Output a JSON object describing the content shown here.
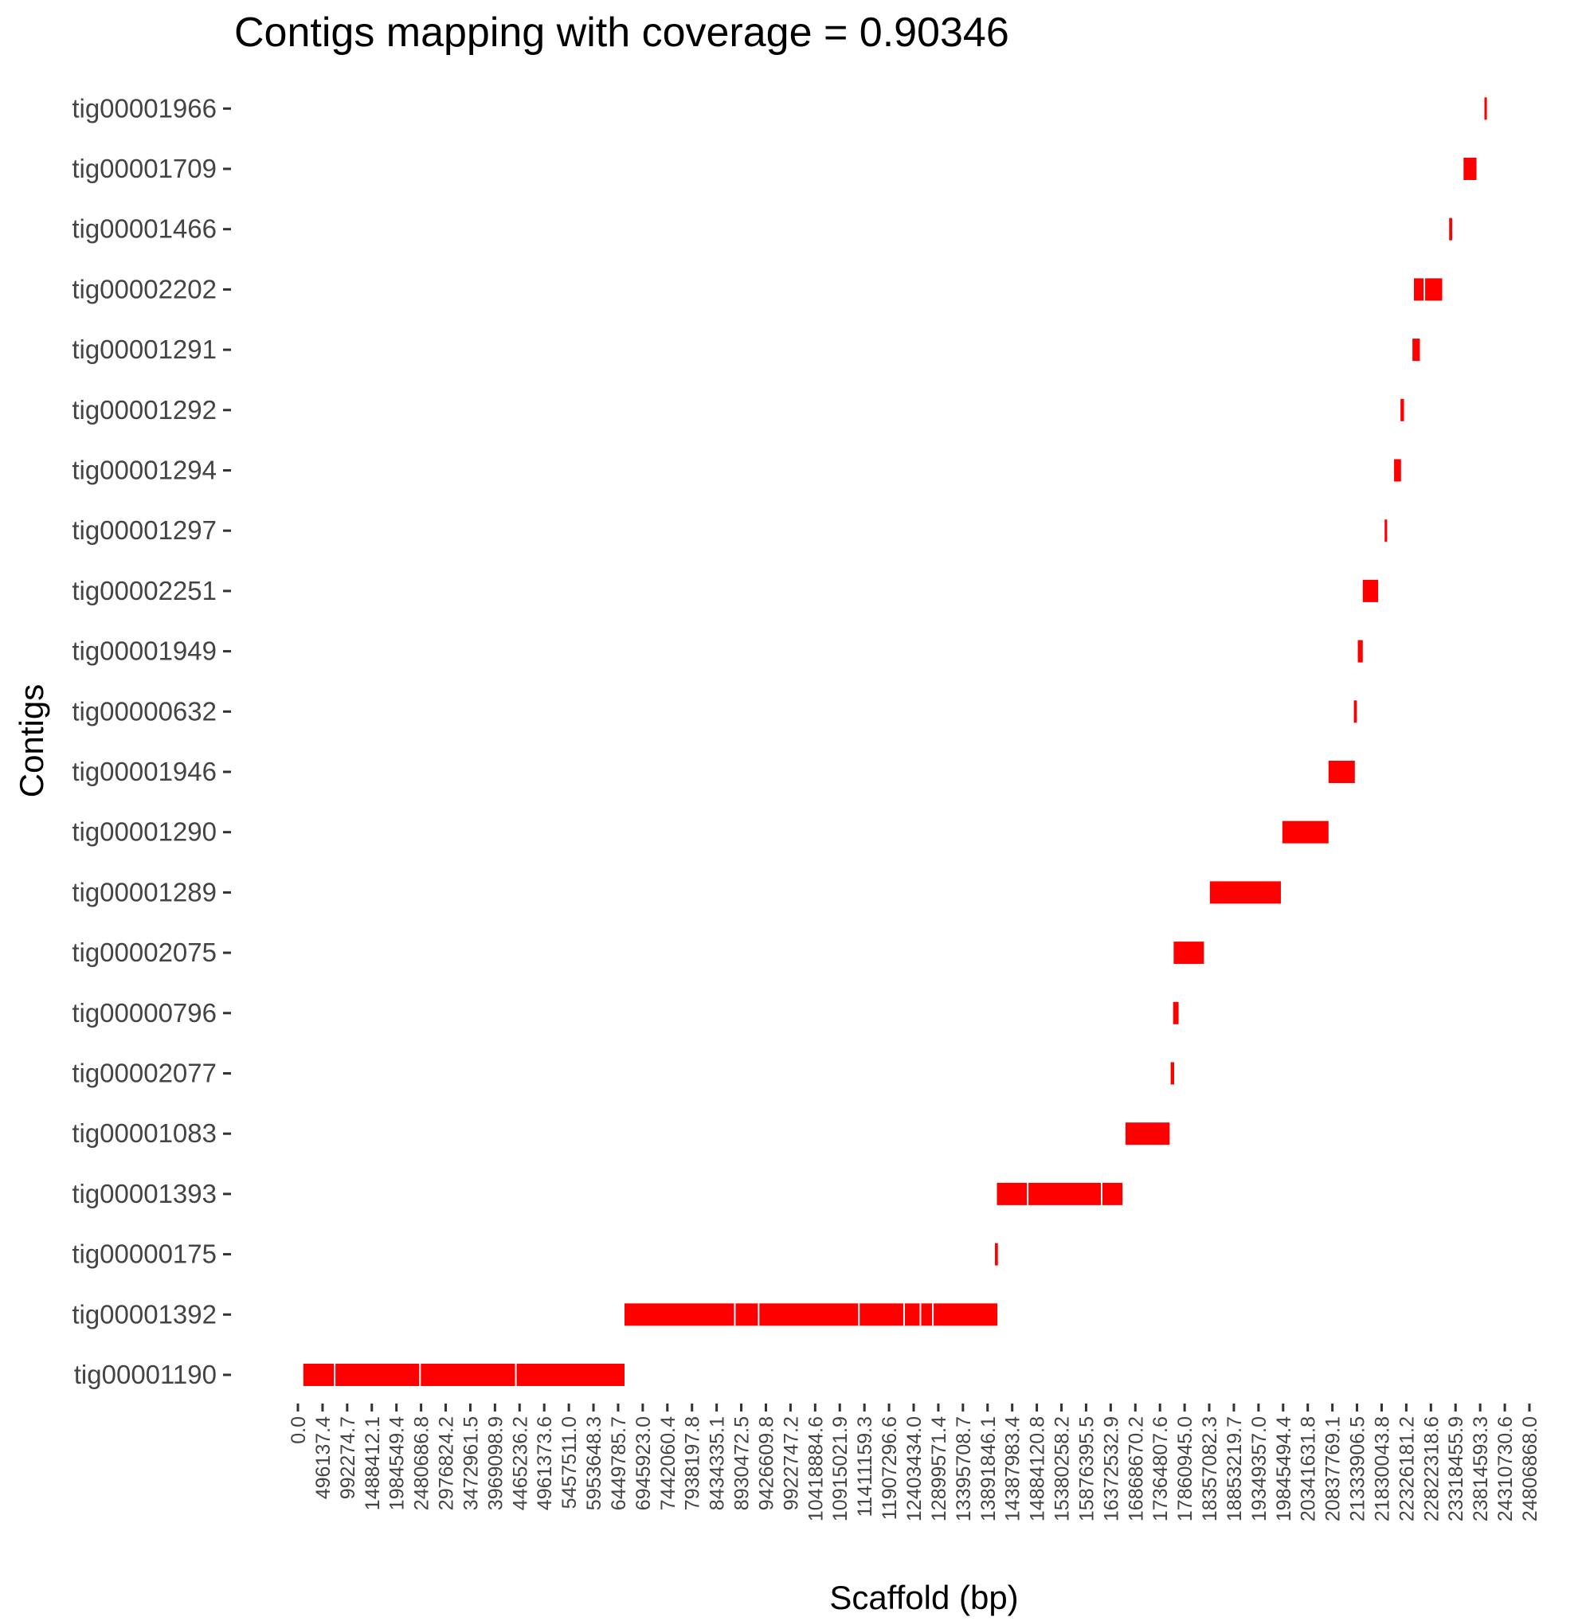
{
  "chart_data": {
    "type": "bar",
    "orientation": "horizontal-range",
    "title": "Contigs mapping with coverage = 0.90346",
    "xlabel": "Scaffold (bp)",
    "ylabel": "Contigs",
    "xlim": [
      0,
      24806868
    ],
    "bar_color": "#ff0000",
    "categories": [
      "tig00001190",
      "tig00001392",
      "tig00000175",
      "tig00001393",
      "tig00001083",
      "tig00002077",
      "tig00000796",
      "tig00002075",
      "tig00001289",
      "tig00001290",
      "tig00001946",
      "tig00000632",
      "tig00001949",
      "tig00002251",
      "tig00001297",
      "tig00001294",
      "tig00001292",
      "tig00001291",
      "tig00002202",
      "tig00001466",
      "tig00001709",
      "tig00001966"
    ],
    "x_tick_labels": [
      "0.0",
      "496137.4",
      "992274.7",
      "1488412.1",
      "1984549.4",
      "2480686.8",
      "2976824.2",
      "3472961.5",
      "3969098.9",
      "4465236.2",
      "4961373.6",
      "5457511.0",
      "5953648.3",
      "6449785.7",
      "6945923.0",
      "7442060.4",
      "7938197.8",
      "8434335.1",
      "8930472.5",
      "9426609.8",
      "9922747.2",
      "10418884.6",
      "10915021.9",
      "11411159.3",
      "11907296.6",
      "12403434.0",
      "12899571.4",
      "13395708.7",
      "13891846.1",
      "14387983.4",
      "14884120.8",
      "15380258.2",
      "15876395.5",
      "16372532.9",
      "16868670.2",
      "17364807.6",
      "17860945.0",
      "18357082.3",
      "18853219.7",
      "19349357.0",
      "19845494.4",
      "20341631.8",
      "20837769.1",
      "21333906.5",
      "21830043.8",
      "22326181.2",
      "22822318.6",
      "23318455.9",
      "23814593.3",
      "24310730.6",
      "24806868.0"
    ],
    "segments": [
      {
        "contig": "tig00001190",
        "start": 109000,
        "end": 6579000,
        "breaks": [
          740000,
          2460000,
          4390000
        ]
      },
      {
        "contig": "tig00001392",
        "start": 6579000,
        "end": 14090000,
        "breaks": [
          8800000,
          9280000,
          11300000,
          12210000,
          12540000,
          12790000
        ]
      },
      {
        "contig": "tig00000175",
        "start": 14040000,
        "end": 14100000,
        "breaks": []
      },
      {
        "contig": "tig00001393",
        "start": 14080000,
        "end": 16610000,
        "breaks": [
          14700000,
          16190000
        ]
      },
      {
        "contig": "tig00001083",
        "start": 16670000,
        "end": 17560000,
        "breaks": []
      },
      {
        "contig": "tig00002077",
        "start": 17580000,
        "end": 17650000,
        "breaks": []
      },
      {
        "contig": "tig00000796",
        "start": 17630000,
        "end": 17740000,
        "breaks": []
      },
      {
        "contig": "tig00002075",
        "start": 17640000,
        "end": 18250000,
        "breaks": []
      },
      {
        "contig": "tig00001289",
        "start": 18370000,
        "end": 19800000,
        "breaks": []
      },
      {
        "contig": "tig00001290",
        "start": 19830000,
        "end": 20760000,
        "breaks": []
      },
      {
        "contig": "tig00001946",
        "start": 20760000,
        "end": 21290000,
        "breaks": []
      },
      {
        "contig": "tig00000632",
        "start": 21270000,
        "end": 21330000,
        "breaks": []
      },
      {
        "contig": "tig00001949",
        "start": 21350000,
        "end": 21450000,
        "breaks": []
      },
      {
        "contig": "tig00002251",
        "start": 21450000,
        "end": 21760000,
        "breaks": []
      },
      {
        "contig": "tig00001297",
        "start": 21890000,
        "end": 21940000,
        "breaks": []
      },
      {
        "contig": "tig00001294",
        "start": 22080000,
        "end": 22220000,
        "breaks": []
      },
      {
        "contig": "tig00001292",
        "start": 22210000,
        "end": 22280000,
        "breaks": []
      },
      {
        "contig": "tig00001291",
        "start": 22450000,
        "end": 22600000,
        "breaks": []
      },
      {
        "contig": "tig00002202",
        "start": 22480000,
        "end": 23050000,
        "breaks": [
          22690000
        ]
      },
      {
        "contig": "tig00001466",
        "start": 23190000,
        "end": 23250000,
        "breaks": []
      },
      {
        "contig": "tig00001709",
        "start": 23480000,
        "end": 23740000,
        "breaks": []
      },
      {
        "contig": "tig00001966",
        "start": 23900000,
        "end": 23950000,
        "breaks": []
      }
    ]
  }
}
